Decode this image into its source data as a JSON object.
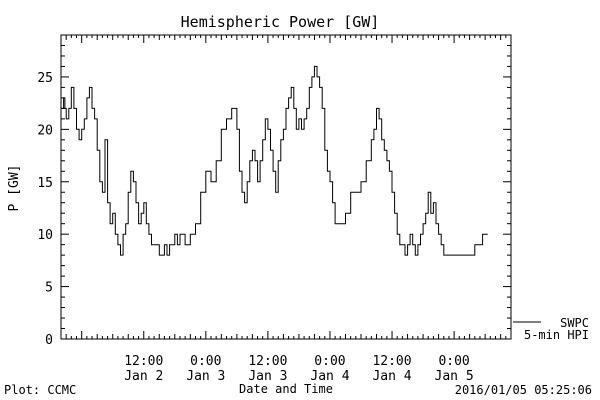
{
  "chart_data": {
    "type": "line",
    "title": "Hemispheric Power [GW]",
    "xlabel": "Date and Time",
    "ylabel": "P [GW]",
    "ylim": [
      0,
      29
    ],
    "xlim": [
      "2016-01-01T20:00",
      "2016-01-05T11:00"
    ],
    "y_ticks": [
      "0",
      "5",
      "10",
      "15",
      "20",
      "25"
    ],
    "x_ticks": [
      {
        "time": "2016-01-02T12:00",
        "line1": "12:00",
        "line2": "Jan 2"
      },
      {
        "time": "2016-01-03T00:00",
        "line1": "0:00",
        "line2": "Jan 3"
      },
      {
        "time": "2016-01-03T12:00",
        "line1": "12:00",
        "line2": "Jan 3"
      },
      {
        "time": "2016-01-04T00:00",
        "line1": "0:00",
        "line2": "Jan 4"
      },
      {
        "time": "2016-01-04T12:00",
        "line1": "12:00",
        "line2": "Jan 4"
      },
      {
        "time": "2016-01-05T00:00",
        "line1": "0:00",
        "line2": "Jan 5"
      }
    ],
    "legend": {
      "placement": "bottom-right",
      "entries": [
        "SWPC",
        "5-min HPI"
      ]
    },
    "series": [
      {
        "name": "",
        "step": true,
        "x": [
          "2016-01-01T20:00",
          "2016-01-01T20:30",
          "2016-01-01T20:45",
          "2016-01-01T21:00",
          "2016-01-01T21:30",
          "2016-01-01T22:00",
          "2016-01-01T22:30",
          "2016-01-01T23:00",
          "2016-01-01T23:30",
          "2016-01-02T00:00",
          "2016-01-02T00:30",
          "2016-01-02T01:00",
          "2016-01-02T01:30",
          "2016-01-02T02:00",
          "2016-01-02T02:30",
          "2016-01-02T03:00",
          "2016-01-02T03:30",
          "2016-01-02T04:00",
          "2016-01-02T04:30",
          "2016-01-02T05:00",
          "2016-01-02T05:30",
          "2016-01-02T06:00",
          "2016-01-02T06:30",
          "2016-01-02T07:00",
          "2016-01-02T07:30",
          "2016-01-02T08:00",
          "2016-01-02T08:30",
          "2016-01-02T09:00",
          "2016-01-02T09:30",
          "2016-01-02T10:00",
          "2016-01-02T10:30",
          "2016-01-02T11:00",
          "2016-01-02T11:30",
          "2016-01-02T12:00",
          "2016-01-02T12:30",
          "2016-01-02T13:00",
          "2016-01-02T13:30",
          "2016-01-02T14:00",
          "2016-01-02T14:30",
          "2016-01-02T15:00",
          "2016-01-02T15:30",
          "2016-01-02T16:00",
          "2016-01-02T16:30",
          "2016-01-02T17:00",
          "2016-01-02T17:30",
          "2016-01-02T18:00",
          "2016-01-02T18:30",
          "2016-01-02T19:00",
          "2016-01-02T19:30",
          "2016-01-02T20:00",
          "2016-01-02T21:00",
          "2016-01-02T22:00",
          "2016-01-02T23:00",
          "2016-01-03T00:00",
          "2016-01-03T01:00",
          "2016-01-03T02:00",
          "2016-01-03T03:00",
          "2016-01-03T04:00",
          "2016-01-03T05:00",
          "2016-01-03T06:00",
          "2016-01-03T06:30",
          "2016-01-03T07:00",
          "2016-01-03T07:30",
          "2016-01-03T08:00",
          "2016-01-03T08:30",
          "2016-01-03T09:00",
          "2016-01-03T09:30",
          "2016-01-03T10:00",
          "2016-01-03T10:30",
          "2016-01-03T11:00",
          "2016-01-03T11:30",
          "2016-01-03T12:00",
          "2016-01-03T12:30",
          "2016-01-03T13:00",
          "2016-01-03T13:30",
          "2016-01-03T14:00",
          "2016-01-03T14:30",
          "2016-01-03T15:00",
          "2016-01-03T15:30",
          "2016-01-03T16:00",
          "2016-01-03T16:30",
          "2016-01-03T17:00",
          "2016-01-03T17:30",
          "2016-01-03T18:00",
          "2016-01-03T18:30",
          "2016-01-03T19:00",
          "2016-01-03T19:30",
          "2016-01-03T20:00",
          "2016-01-03T20:30",
          "2016-01-03T21:00",
          "2016-01-03T21:30",
          "2016-01-03T22:00",
          "2016-01-03T22:30",
          "2016-01-03T23:00",
          "2016-01-03T23:30",
          "2016-01-04T00:00",
          "2016-01-04T00:30",
          "2016-01-04T01:00",
          "2016-01-04T01:30",
          "2016-01-04T02:00",
          "2016-01-04T03:00",
          "2016-01-04T04:00",
          "2016-01-04T05:00",
          "2016-01-04T06:00",
          "2016-01-04T07:00",
          "2016-01-04T08:00",
          "2016-01-04T08:30",
          "2016-01-04T09:00",
          "2016-01-04T09:30",
          "2016-01-04T10:00",
          "2016-01-04T10:30",
          "2016-01-04T11:00",
          "2016-01-04T11:30",
          "2016-01-04T12:00",
          "2016-01-04T12:30",
          "2016-01-04T13:00",
          "2016-01-04T13:30",
          "2016-01-04T14:00",
          "2016-01-04T14:30",
          "2016-01-04T15:00",
          "2016-01-04T15:30",
          "2016-01-04T16:00",
          "2016-01-04T16:30",
          "2016-01-04T17:00",
          "2016-01-04T17:30",
          "2016-01-04T18:00",
          "2016-01-04T18:30",
          "2016-01-04T19:00",
          "2016-01-04T19:30",
          "2016-01-04T20:00",
          "2016-01-04T20:30",
          "2016-01-04T21:00",
          "2016-01-04T21:30",
          "2016-01-04T22:00",
          "2016-01-04T23:00",
          "2016-01-05T00:00",
          "2016-01-05T01:00",
          "2016-01-05T02:00",
          "2016-01-05T03:00",
          "2016-01-05T04:00",
          "2016-01-05T05:00",
          "2016-01-05T05:30",
          "2016-01-05T06:00",
          "2016-01-05T06:30"
        ],
        "y": [
          22,
          23,
          22,
          21,
          22,
          24,
          22,
          20,
          19,
          20,
          21,
          23,
          24,
          22,
          21,
          18,
          15,
          14,
          19,
          13,
          11,
          12,
          10,
          9,
          8,
          10,
          11,
          14,
          16,
          15,
          13,
          11,
          12,
          13,
          11,
          10,
          9,
          9,
          9,
          8,
          8,
          9,
          8,
          9,
          9,
          10,
          9,
          10,
          10,
          9,
          10,
          11,
          14,
          16,
          15,
          17,
          20,
          21,
          22,
          20,
          16,
          14,
          13,
          15,
          17,
          18,
          17,
          15,
          17,
          19,
          21,
          20,
          18,
          16,
          14,
          17,
          19,
          20,
          22,
          23,
          24,
          22,
          20,
          21,
          20,
          21,
          22,
          24,
          25,
          26,
          25,
          24,
          22,
          18,
          16,
          15,
          13,
          11,
          11,
          11,
          12,
          14,
          14,
          15,
          17,
          19,
          20,
          22,
          21,
          19,
          18,
          17,
          16,
          14,
          12,
          10,
          9,
          9,
          8,
          9,
          10,
          9,
          8,
          9,
          10,
          11,
          12,
          14,
          12,
          13,
          11,
          10,
          9,
          8,
          8,
          8,
          8,
          8,
          8,
          9,
          9,
          10,
          10,
          10
        ]
      }
    ]
  },
  "footer": {
    "left": "Plot: CCMC",
    "right": "2016/01/05 05:25:06"
  }
}
